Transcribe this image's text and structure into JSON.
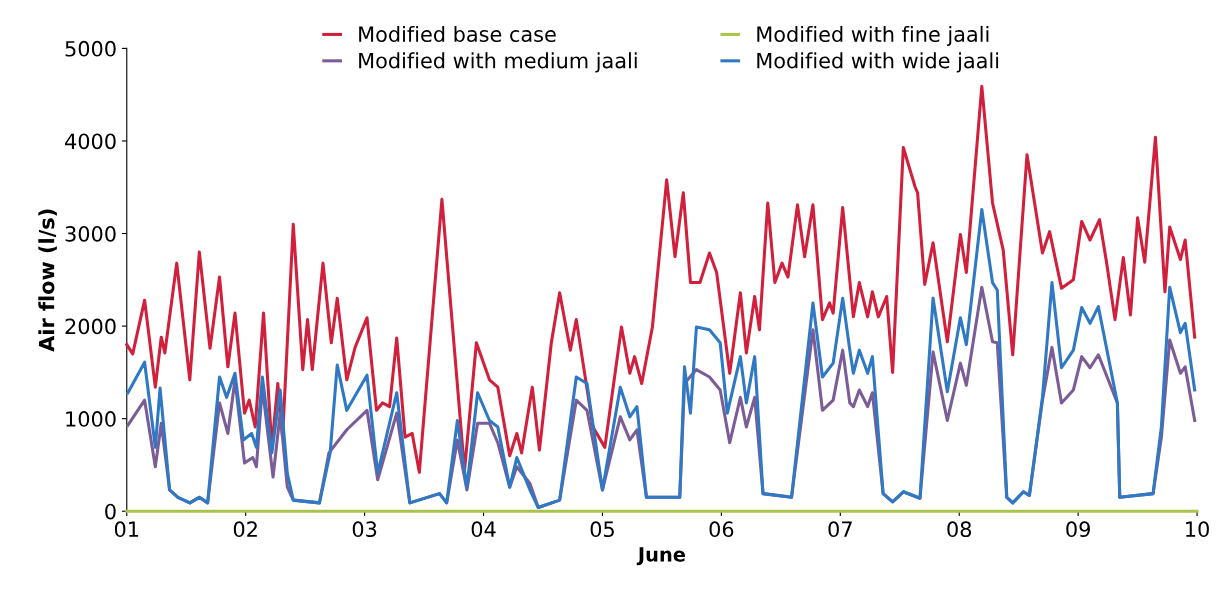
{
  "chart_data": {
    "type": "line",
    "xlabel": "June",
    "ylabel": "Air flow (l/s)",
    "xlim": [
      1,
      10
    ],
    "xticks": [
      {
        "value": 1,
        "label": "01"
      },
      {
        "value": 2,
        "label": "02"
      },
      {
        "value": 3,
        "label": "03"
      },
      {
        "value": 4,
        "label": "04"
      },
      {
        "value": 5,
        "label": "05"
      },
      {
        "value": 6,
        "label": "06"
      },
      {
        "value": 7,
        "label": "07"
      },
      {
        "value": 8,
        "label": "08"
      },
      {
        "value": 9,
        "label": "09"
      },
      {
        "value": 10,
        "label": "10"
      }
    ],
    "ylim": [
      0,
      5000
    ],
    "yticks": [
      0,
      1000,
      2000,
      3000,
      4000,
      5000
    ],
    "grid": false,
    "legend": "top",
    "marker": "none",
    "line_style": "solid",
    "series": [
      {
        "name": "Modified base case",
        "color": "#d0203c",
        "x": [
          1.0,
          1.05,
          1.15,
          1.24,
          1.29,
          1.32,
          1.42,
          1.53,
          1.61,
          1.7,
          1.78,
          1.85,
          1.91,
          1.99,
          2.03,
          2.08,
          2.15,
          2.22,
          2.27,
          2.31,
          2.4,
          2.48,
          2.52,
          2.56,
          2.65,
          2.72,
          2.77,
          2.85,
          2.92,
          3.02,
          3.1,
          3.15,
          3.21,
          3.27,
          3.34,
          3.4,
          3.46,
          3.65,
          3.84,
          3.94,
          4.05,
          4.12,
          4.22,
          4.28,
          4.32,
          4.41,
          4.47,
          4.57,
          4.64,
          4.73,
          4.78,
          4.92,
          5.02,
          5.16,
          5.23,
          5.27,
          5.33,
          5.42,
          5.54,
          5.61,
          5.68,
          5.74,
          5.82,
          5.9,
          5.96,
          6.07,
          6.16,
          6.21,
          6.28,
          6.32,
          6.39,
          6.45,
          6.51,
          6.56,
          6.64,
          6.7,
          6.77,
          6.85,
          6.91,
          6.94,
          7.02,
          7.11,
          7.16,
          7.23,
          7.27,
          7.32,
          7.39,
          7.44,
          7.53,
          7.63,
          7.65,
          7.71,
          7.78,
          7.9,
          8.01,
          8.06,
          8.19,
          8.28,
          8.37,
          8.45,
          8.57,
          8.7,
          8.76,
          8.86,
          8.96,
          9.03,
          9.1,
          9.18,
          9.24,
          9.31,
          9.38,
          9.44,
          9.5,
          9.56,
          9.65,
          9.73,
          9.77,
          9.86,
          9.9,
          9.98
        ],
        "values": [
          1800,
          1700,
          2280,
          1340,
          1880,
          1710,
          2680,
          1420,
          2800,
          1760,
          2530,
          1560,
          2140,
          1060,
          1200,
          910,
          2140,
          690,
          1380,
          800,
          3100,
          1530,
          2070,
          1530,
          2680,
          1820,
          2300,
          1420,
          1770,
          2090,
          1090,
          1170,
          1130,
          1870,
          800,
          840,
          420,
          3370,
          440,
          1820,
          1420,
          1340,
          600,
          840,
          630,
          1340,
          660,
          1820,
          2360,
          1740,
          2070,
          910,
          690,
          1990,
          1490,
          1670,
          1380,
          1990,
          3580,
          2750,
          3440,
          2470,
          2470,
          2790,
          2580,
          1490,
          2360,
          1710,
          2320,
          1960,
          3330,
          2470,
          2680,
          2530,
          3310,
          2750,
          3310,
          2070,
          2250,
          2140,
          3280,
          2100,
          2470,
          2100,
          2370,
          2100,
          2320,
          1500,
          3930,
          3500,
          3440,
          2450,
          2900,
          1830,
          2990,
          2580,
          4590,
          3330,
          2820,
          1690,
          3850,
          2790,
          3020,
          2410,
          2500,
          3130,
          2930,
          3150,
          2680,
          2070,
          2740,
          2120,
          3170,
          2690,
          4040,
          2370,
          3070,
          2720,
          2930,
          1880
        ]
      },
      {
        "name": "Modified with fine jaali",
        "color": "#a8c44a",
        "x": [
          1,
          10
        ],
        "values": [
          0,
          0
        ]
      },
      {
        "name": "Modified with medium jaali",
        "color": "#7b5c96",
        "x": [
          1.01,
          1.15,
          1.24,
          1.29,
          1.36,
          1.43,
          1.53,
          1.61,
          1.68,
          1.78,
          1.85,
          1.91,
          1.99,
          2.06,
          2.09,
          2.14,
          2.23,
          2.29,
          2.35,
          2.4,
          2.62,
          2.7,
          2.85,
          3.02,
          3.11,
          3.27,
          3.38,
          3.63,
          3.69,
          3.78,
          3.86,
          3.95,
          4.05,
          4.12,
          4.22,
          4.28,
          4.39,
          4.46,
          4.64,
          4.78,
          4.87,
          5.0,
          5.15,
          5.23,
          5.29,
          5.37,
          5.65,
          5.69,
          5.79,
          5.9,
          5.99,
          6.07,
          6.16,
          6.21,
          6.28,
          6.35,
          6.59,
          6.77,
          6.85,
          6.94,
          7.02,
          7.08,
          7.11,
          7.16,
          7.23,
          7.27,
          7.36,
          7.44,
          7.53,
          7.67,
          7.78,
          7.9,
          8.01,
          8.06,
          8.19,
          8.28,
          8.32,
          8.4,
          8.45,
          8.54,
          8.59,
          8.7,
          8.78,
          8.86,
          8.96,
          9.03,
          9.1,
          9.17,
          9.33,
          9.35,
          9.63,
          9.7,
          9.77,
          9.86,
          9.9,
          9.98
        ],
        "values": [
          930,
          1200,
          480,
          950,
          230,
          150,
          90,
          150,
          90,
          1170,
          840,
          1420,
          520,
          580,
          480,
          1340,
          370,
          1060,
          260,
          120,
          90,
          630,
          880,
          1090,
          340,
          1060,
          90,
          190,
          90,
          770,
          230,
          950,
          950,
          740,
          260,
          480,
          300,
          40,
          120,
          1200,
          1090,
          230,
          1020,
          770,
          880,
          150,
          150,
          1380,
          1530,
          1450,
          1310,
          740,
          1230,
          910,
          1230,
          190,
          150,
          1960,
          1090,
          1200,
          1740,
          1170,
          1130,
          1310,
          1130,
          1280,
          190,
          100,
          210,
          140,
          1720,
          980,
          1600,
          1360,
          2420,
          1830,
          1820,
          150,
          90,
          210,
          170,
          1200,
          1770,
          1170,
          1310,
          1670,
          1550,
          1690,
          1170,
          150,
          190,
          800,
          1850,
          1490,
          1560,
          980
        ]
      },
      {
        "name": "Modified with wide jaali",
        "color": "#2f78c4",
        "x": [
          1.01,
          1.15,
          1.24,
          1.28,
          1.36,
          1.43,
          1.53,
          1.61,
          1.68,
          1.78,
          1.84,
          1.91,
          1.98,
          2.05,
          2.09,
          2.14,
          2.22,
          2.29,
          2.35,
          2.4,
          2.62,
          2.71,
          2.77,
          2.85,
          3.02,
          3.11,
          3.27,
          3.38,
          3.63,
          3.69,
          3.78,
          3.86,
          3.95,
          4.05,
          4.12,
          4.22,
          4.28,
          4.39,
          4.46,
          4.64,
          4.78,
          4.87,
          5.0,
          5.15,
          5.23,
          5.29,
          5.37,
          5.65,
          5.69,
          5.74,
          5.79,
          5.9,
          5.99,
          6.05,
          6.16,
          6.21,
          6.28,
          6.35,
          6.59,
          6.77,
          6.85,
          6.94,
          7.02,
          7.08,
          7.11,
          7.16,
          7.23,
          7.27,
          7.36,
          7.44,
          7.53,
          7.67,
          7.78,
          7.9,
          8.01,
          8.06,
          8.19,
          8.28,
          8.32,
          8.4,
          8.45,
          8.54,
          8.59,
          8.7,
          8.78,
          8.86,
          8.96,
          9.03,
          9.1,
          9.17,
          9.33,
          9.35,
          9.63,
          9.7,
          9.77,
          9.86,
          9.9,
          9.98
        ],
        "values": [
          1280,
          1610,
          690,
          1330,
          230,
          150,
          90,
          150,
          90,
          1450,
          1230,
          1490,
          770,
          840,
          690,
          1450,
          630,
          1310,
          410,
          120,
          90,
          630,
          1580,
          1090,
          1470,
          410,
          1280,
          90,
          190,
          90,
          980,
          260,
          1280,
          980,
          910,
          260,
          580,
          230,
          40,
          120,
          1450,
          1380,
          230,
          1340,
          1020,
          1130,
          150,
          150,
          1560,
          1060,
          1990,
          1960,
          1820,
          1060,
          1670,
          1170,
          1670,
          190,
          150,
          2250,
          1450,
          1600,
          2300,
          1740,
          1490,
          1740,
          1490,
          1670,
          190,
          100,
          210,
          140,
          2300,
          1290,
          2090,
          1800,
          3260,
          2470,
          2390,
          150,
          90,
          210,
          170,
          1230,
          2470,
          1550,
          1740,
          2200,
          2030,
          2210,
          1170,
          150,
          190,
          910,
          2420,
          1930,
          2030,
          1310
        ]
      }
    ]
  }
}
